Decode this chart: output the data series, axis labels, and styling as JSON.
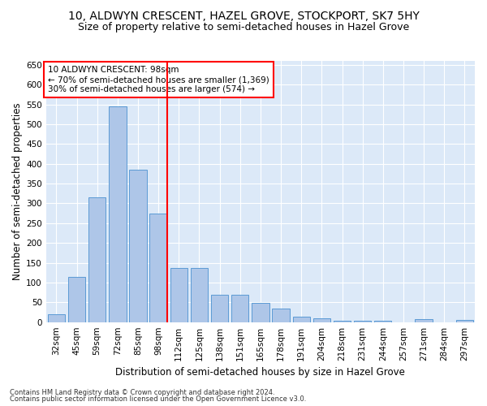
{
  "title": "10, ALDWYN CRESCENT, HAZEL GROVE, STOCKPORT, SK7 5HY",
  "subtitle": "Size of property relative to semi-detached houses in Hazel Grove",
  "xlabel": "Distribution of semi-detached houses by size in Hazel Grove",
  "ylabel": "Number of semi-detached properties",
  "categories": [
    "32sqm",
    "45sqm",
    "59sqm",
    "72sqm",
    "85sqm",
    "98sqm",
    "112sqm",
    "125sqm",
    "138sqm",
    "151sqm",
    "165sqm",
    "178sqm",
    "191sqm",
    "204sqm",
    "218sqm",
    "231sqm",
    "244sqm",
    "257sqm",
    "271sqm",
    "284sqm",
    "297sqm"
  ],
  "values": [
    20,
    115,
    315,
    545,
    385,
    275,
    137,
    137,
    70,
    70,
    48,
    35,
    13,
    9,
    4,
    4,
    3,
    0,
    7,
    0,
    5
  ],
  "bar_color": "#aec6e8",
  "bar_edge_color": "#5b9bd5",
  "marker_index": 5,
  "annotation_title": "10 ALDWYN CRESCENT: 98sqm",
  "annotation_line1": "← 70% of semi-detached houses are smaller (1,369)",
  "annotation_line2": "30% of semi-detached houses are larger (574) →",
  "footer1": "Contains HM Land Registry data © Crown copyright and database right 2024.",
  "footer2": "Contains public sector information licensed under the Open Government Licence v3.0.",
  "ylim": [
    0,
    660
  ],
  "yticks": [
    0,
    50,
    100,
    150,
    200,
    250,
    300,
    350,
    400,
    450,
    500,
    550,
    600,
    650
  ],
  "bg_color": "#dce9f8",
  "grid_color": "#ffffff",
  "fig_bg_color": "#ffffff",
  "title_fontsize": 10,
  "subtitle_fontsize": 9,
  "xlabel_fontsize": 8.5,
  "ylabel_fontsize": 8.5,
  "tick_fontsize": 7.5,
  "annotation_fontsize": 7.5,
  "footer_fontsize": 6.0
}
